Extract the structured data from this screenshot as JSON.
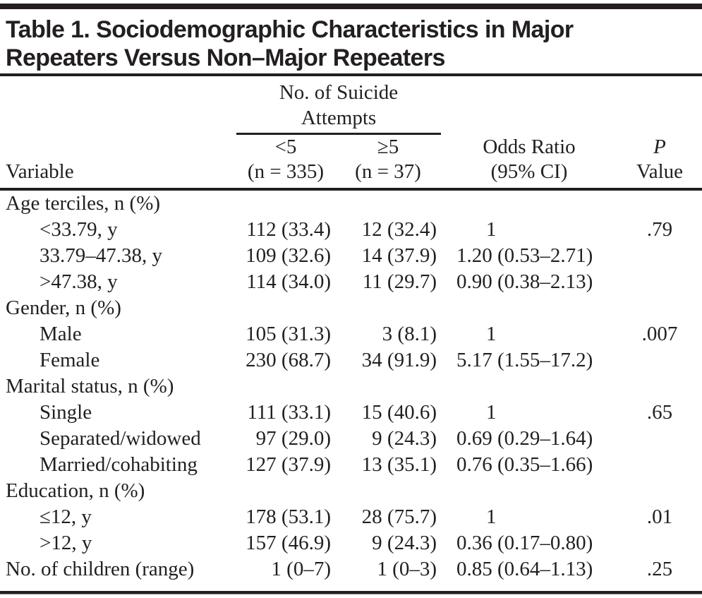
{
  "page": {
    "title_line1": "Table 1. Sociodemographic Characteristics in Major",
    "title_line2": "Repeaters Versus Non–Major Repeaters"
  },
  "colors": {
    "ink": "#231f20",
    "background": "#ffffff"
  },
  "table": {
    "spanner": {
      "line1": "No. of Suicide",
      "line2": "Attempts"
    },
    "columns": {
      "variable": {
        "label": "Variable"
      },
      "lt5": {
        "line1": "<5",
        "line2": "(n = 335)"
      },
      "ge5": {
        "line1": "≥5",
        "line2": "(n = 37)"
      },
      "or": {
        "line1": "Odds Ratio",
        "line2": "(95% CI)"
      },
      "p": {
        "line1": "P",
        "line2": "Value"
      }
    },
    "rows": [
      {
        "variable": "Age terciles, n (%)",
        "indent": false,
        "lt5": "",
        "ge5": "",
        "or": "",
        "p": ""
      },
      {
        "variable": "<33.79, y",
        "indent": true,
        "lt5": "112 (33.4)",
        "ge5": "12 (32.4)",
        "or": "1",
        "p": ".79"
      },
      {
        "variable": "33.79–47.38, y",
        "indent": true,
        "lt5": "109 (32.6)",
        "ge5": "14 (37.9)",
        "or": "1.20 (0.53–2.71)",
        "p": ""
      },
      {
        "variable": ">47.38, y",
        "indent": true,
        "lt5": "114 (34.0)",
        "ge5": "11 (29.7)",
        "or": "0.90 (0.38–2.13)",
        "p": ""
      },
      {
        "variable": "Gender, n (%)",
        "indent": false,
        "lt5": "",
        "ge5": "",
        "or": "",
        "p": ""
      },
      {
        "variable": "Male",
        "indent": true,
        "lt5": "105 (31.3)",
        "ge5": "3 (8.1)",
        "or": "1",
        "p": ".007"
      },
      {
        "variable": "Female",
        "indent": true,
        "lt5": "230 (68.7)",
        "ge5": "34 (91.9)",
        "or": "5.17 (1.55–17.2)",
        "p": ""
      },
      {
        "variable": "Marital status, n (%)",
        "indent": false,
        "lt5": "",
        "ge5": "",
        "or": "",
        "p": ""
      },
      {
        "variable": "Single",
        "indent": true,
        "lt5": "111 (33.1)",
        "ge5": "15 (40.6)",
        "or": "1",
        "p": ".65"
      },
      {
        "variable": "Separated/widowed",
        "indent": true,
        "lt5": "97 (29.0)",
        "ge5": "9 (24.3)",
        "or": "0.69 (0.29–1.64)",
        "p": ""
      },
      {
        "variable": "Married/cohabiting",
        "indent": true,
        "lt5": "127 (37.9)",
        "ge5": "13 (35.1)",
        "or": "0.76 (0.35–1.66)",
        "p": ""
      },
      {
        "variable": "Education, n (%)",
        "indent": false,
        "lt5": "",
        "ge5": "",
        "or": "",
        "p": ""
      },
      {
        "variable": "≤12, y",
        "indent": true,
        "lt5": "178 (53.1)",
        "ge5": "28 (75.7)",
        "or": "1",
        "p": ".01"
      },
      {
        "variable": ">12, y",
        "indent": true,
        "lt5": "157 (46.9)",
        "ge5": "9 (24.3)",
        "or": "0.36 (0.17–0.80)",
        "p": ""
      },
      {
        "variable": "No. of children (range)",
        "indent": false,
        "lt5": "1 (0–7)",
        "ge5": "1 (0–3)",
        "or": "0.85 (0.64–1.13)",
        "p": ".25"
      }
    ]
  }
}
